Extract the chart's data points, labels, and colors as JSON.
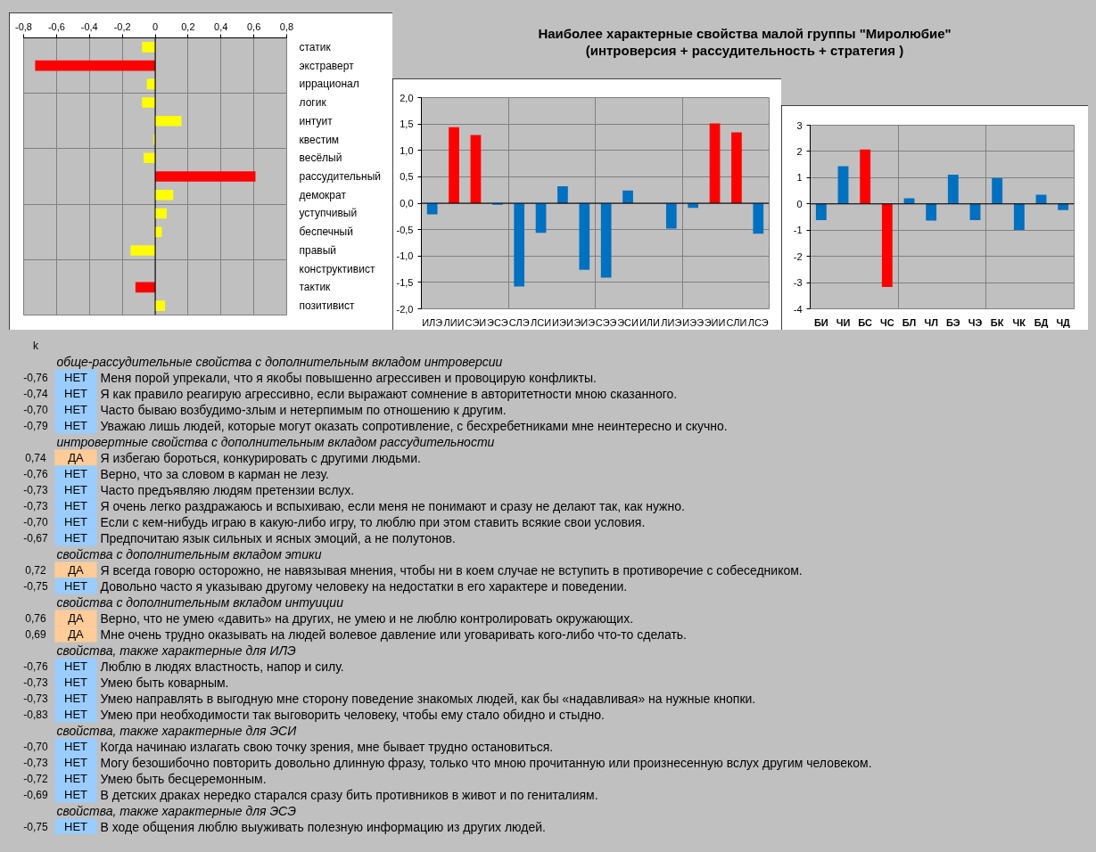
{
  "chart_data": [
    {
      "type": "bar",
      "orientation": "horizontal",
      "categories": [
        "статик",
        "экстраверт",
        "иррационал",
        "логик",
        "интуит",
        "квестим",
        "весёлый",
        "рассудительный",
        "демократ",
        "уступчивый",
        "беспечный",
        "правый",
        "конструктивист",
        "тактик",
        "позитивист"
      ],
      "values": [
        -0.08,
        -0.73,
        -0.05,
        -0.08,
        0.16,
        -0.01,
        -0.07,
        0.61,
        0.11,
        0.07,
        0.04,
        -0.15,
        null,
        -0.12,
        0.06
      ],
      "colors": [
        "#ffff00",
        "#ff0000",
        "#ffff00",
        "#ffff00",
        "#ffff00",
        "#ffff00",
        "#ffff00",
        "#ff0000",
        "#ffff00",
        "#ffff00",
        "#ffff00",
        "#ffff00",
        "#ffff00",
        "#ff0000",
        "#ffff00"
      ],
      "xlim": [
        -0.8,
        0.8
      ],
      "xticks": [
        {
          "value": -0.8,
          "label": "-0,8"
        },
        {
          "value": -0.6,
          "label": "-0,6"
        },
        {
          "value": -0.4,
          "label": "-0,4"
        },
        {
          "value": -0.2,
          "label": "-0,2"
        },
        0,
        {
          "value": 0.2,
          "label": "0,2"
        },
        {
          "value": 0.4,
          "label": "0,4"
        },
        {
          "value": 0.6,
          "label": "0,6"
        },
        {
          "value": 0.8,
          "label": "0,8"
        }
      ],
      "grid": true
    },
    {
      "type": "bar",
      "title": "Наиболее характерные свойства малой группы \"Миролюбие\"",
      "subtitle": "(интроверсия + рассудительность + стратегия )",
      "categories": [
        "ИЛЭ",
        "ЛИИ",
        "СЭИ",
        "ЭСЭ",
        "СЛЭ",
        "ЛСИ",
        "ИЭИ",
        "ЭИЭ",
        "СЭЭ",
        "ЭСИ",
        "ИЛИ",
        "ЛИЭ",
        "ИЭЭ",
        "ЭИИ",
        "СЛИ",
        "ЛСЭ"
      ],
      "values": [
        -0.21,
        1.44,
        1.29,
        -0.03,
        -1.58,
        -0.56,
        0.32,
        -1.26,
        -1.41,
        0.24,
        null,
        -0.48,
        -0.09,
        1.51,
        1.34,
        -0.58
      ],
      "colors": [
        "#0070c0",
        "#ff0000",
        "#ff0000",
        "#0070c0",
        "#0070c0",
        "#0070c0",
        "#0070c0",
        "#0070c0",
        "#0070c0",
        "#0070c0",
        "#0070c0",
        "#0070c0",
        "#0070c0",
        "#ff0000",
        "#ff0000",
        "#0070c0"
      ],
      "ylim": [
        -2,
        2
      ],
      "yticks": [
        {
          "value": -2,
          "label": "-2,0"
        },
        {
          "value": -1.5,
          "label": "-1,5"
        },
        {
          "value": -1,
          "label": "-1,0"
        },
        {
          "value": -0.5,
          "label": "-0,5"
        },
        {
          "value": 0,
          "label": "0,0"
        },
        {
          "value": 0.5,
          "label": "0,5"
        },
        {
          "value": 1,
          "label": "1,0"
        },
        {
          "value": 1.5,
          "label": "1,5"
        },
        {
          "value": 2,
          "label": "2,0"
        }
      ],
      "grid": true,
      "annotations": [
        "k",
        {
          "text": "обще-рассудительные свойства с дополнительным вкладом интроверсии"
        },
        "-0,76",
        "НЕТ",
        "Меня порой упрекали, что я якобы повышенно агрессивен и провоцирую конфликты.",
        "-0,74",
        "НЕТ",
        "Я как правило реагирую агрессивно, если выражают сомнение в авторитетности мною сказанного.",
        "-0,70",
        "НЕТ",
        "Часто бываю возбудимо-злым и нетерпимым по отношению к другим.",
        "-0,79",
        "НЕТ",
        "Уважаю лишь людей, которые могут оказать сопротивление, с бесхребетниками мне неинтересно и скучно.",
        {
          "text": "интровертные свойства с дополнительным вкладом рассудительности"
        },
        "0,74",
        "ДА",
        "Я избегаю бороться, конкурировать с другими людьми.",
        "-0,76",
        "НЕТ",
        "Верно, что за словом в карман не лезу.",
        "-0,73",
        "НЕТ",
        "Часто предъявляю людям претензии вслух.",
        "-0,73",
        "НЕТ",
        "Я очень легко раздражаюсь и вспыхиваю, если меня не понимают и сразу не делают так, как нужно.",
        "-0,70",
        "НЕТ",
        "Если с кем-нибудь играю в какую-либо игру, то люблю при этом ставить всякие свои условия.",
        "-0,67",
        "НЕТ",
        "Предпочитаю язык сильных и ясных эмоций, а не полутонов.",
        {
          "text": "свойства с дополнительным вкладом этики"
        },
        "0,72",
        "ДА",
        "Я всегда говорю осторожно, не навязывая мнения, чтобы ни в коем случае не вступить в противоречие с собеседником.",
        "-0,75",
        "НЕТ",
        "Довольно часто я указываю другому человеку на недостатки в его характере и поведении.",
        {
          "text": "свойства с дополнительным вкладом интуиции"
        },
        "0,76",
        "ДА",
        "Верно, что не умею «давить» на других, не умею и не люблю контролировать окружающих.",
        "0,69",
        "ДА",
        "Мне очень трудно оказывать на людей волевое давление или уговаривать кого-либо что-то сделать.",
        {
          "text": "свойства, также характерные для ИЛЭ"
        },
        "-0,76",
        "НЕТ",
        "Люблю в людях властность, напор и силу.",
        "-0,73",
        "НЕТ",
        "Умею быть коварным.",
        "-0,73",
        "НЕТ",
        "Умею направлять в выгодную мне сторону поведение знакомых людей, как бы «надавливая» на нужные кнопки.",
        "-0,83",
        "НЕТ",
        "Умею при необходимости так выговорить человеку, чтобы ему стало обидно и стыдно.",
        {
          "text": "свойства, также характерные для ЭСИ"
        },
        "-0,70",
        "НЕТ",
        "Когда начинаю излагать свою точку зрения, мне бывает трудно остановиться.",
        "-0,73",
        "НЕТ",
        "Могу безошибочно повторить довольно длинную фразу, только что мною прочитанную или произнесенную вслух другим человеком.",
        "-0,72",
        "НЕТ",
        "Умею быть бесцеремонным.",
        "-0,69",
        "НЕТ",
        "В детских драках нередко старался сразу бить противников в живот и по гениталиям.",
        {
          "text": "свойства, также характерные для ЭСЭ"
        },
        "-0,75",
        "НЕТ",
        "В ходе общения люблю выуживать полезную информацию из других людей."
      ]
    },
    {
      "type": "bar",
      "categories": [
        "БИ",
        "ЧИ",
        "БС",
        "ЧС",
        "БЛ",
        "ЧЛ",
        "БЭ",
        "ЧЭ",
        "БК",
        "ЧК",
        "БД",
        "ЧД"
      ],
      "values": [
        -0.62,
        1.44,
        2.07,
        -3.17,
        0.21,
        -0.64,
        1.11,
        -0.62,
        0.99,
        -0.99,
        0.35,
        -0.24
      ],
      "colors": [
        "#0070c0",
        "#0070c0",
        "#ff0000",
        "#ff0000",
        "#0070c0",
        "#0070c0",
        "#0070c0",
        "#0070c0",
        "#0070c0",
        "#0070c0",
        "#0070c0",
        "#0070c0"
      ],
      "ylim": [
        -4,
        3
      ],
      "yticks": [
        -4,
        -3,
        -2,
        -1,
        0,
        1,
        2,
        3
      ],
      "grid": true
    }
  ]
}
